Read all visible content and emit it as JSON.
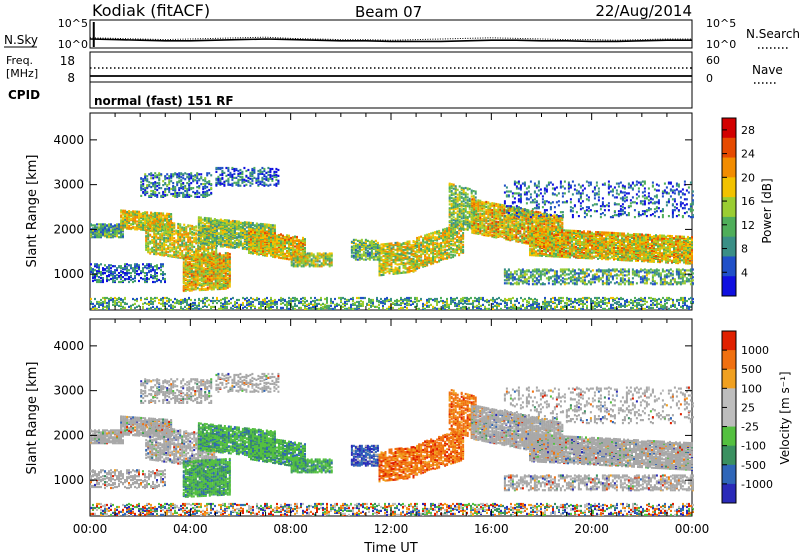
{
  "header": {
    "title": "Kodiak (fitACF)",
    "beam": "Beam 07",
    "date": "22/Aug/2014"
  },
  "chart_data": [
    {
      "id": "noise",
      "type": "line",
      "left_label": "N.Sky",
      "right_label": "N.Search",
      "left_ticks": [
        "10^5",
        "10^0"
      ],
      "right_ticks": [
        "10^5",
        "10^0"
      ],
      "series": [
        {
          "name": "N.Sky",
          "x": [
            0,
            1,
            2,
            3,
            4,
            5,
            6,
            7,
            8,
            9,
            10,
            11,
            12,
            13,
            14,
            15,
            16,
            17,
            18,
            19,
            20,
            21,
            22,
            23,
            24
          ],
          "y": [
            1.5,
            1.4,
            1.3,
            1.2,
            1.2,
            1.3,
            1.4,
            1.5,
            1.4,
            1.3,
            1.2,
            1.2,
            1.1,
            1.1,
            1.1,
            1.2,
            1.3,
            1.3,
            1.2,
            1.2,
            1.1,
            1.1,
            1.2,
            1.3,
            1.3
          ]
        },
        {
          "name": "N.Search",
          "x": [
            0,
            1,
            2,
            3,
            4,
            5,
            6,
            7,
            8,
            9,
            10,
            11,
            12,
            13,
            14,
            15,
            16,
            17,
            18,
            19,
            20,
            21,
            22,
            23,
            24
          ],
          "y": [
            1.7,
            1.6,
            1.5,
            1.4,
            1.5,
            1.6,
            1.7,
            1.8,
            1.6,
            1.5,
            1.4,
            1.4,
            1.3,
            1.4,
            1.5,
            1.6,
            1.7,
            1.6,
            1.5,
            1.4,
            1.4,
            1.3,
            1.4,
            1.5,
            1.5
          ]
        }
      ]
    },
    {
      "id": "freq",
      "type": "line",
      "left_label_lines": [
        "Freq.",
        "[MHz]"
      ],
      "right_label": "Nave",
      "left_ticks": [
        "18",
        "8"
      ],
      "right_ticks": [
        "60",
        "0"
      ],
      "cpid_label": "CPID",
      "cpid_text": "normal (fast) 151 RF",
      "series": [
        {
          "name": "Freq.",
          "x": [
            0,
            24
          ],
          "y": [
            10.2,
            10.2
          ]
        },
        {
          "name": "Nave",
          "x": [
            0,
            24
          ],
          "y": [
            22,
            22
          ]
        }
      ]
    },
    {
      "id": "power",
      "type": "heatmap",
      "ylabel": "Slant Range [km]",
      "yticks": [
        "1000",
        "2000",
        "3000",
        "4000"
      ],
      "ylim": [
        200,
        4600
      ],
      "xlim": [
        0,
        24
      ],
      "colorbar": {
        "label": "Power [dB]",
        "ticks": [
          "4",
          "8",
          "12",
          "16",
          "20",
          "24",
          "28"
        ],
        "range": [
          0,
          30
        ],
        "colors": [
          "#1010e0",
          "#2050c8",
          "#3a8f86",
          "#4fae5a",
          "#9acd32",
          "#f2c200",
          "#f28c00",
          "#e64a00",
          "#d20000"
        ]
      }
    },
    {
      "id": "velocity",
      "type": "heatmap",
      "ylabel": "Slant Range [km]",
      "yticks": [
        "1000",
        "2000",
        "3000",
        "4000"
      ],
      "ylim": [
        200,
        4600
      ],
      "xlim": [
        0,
        24
      ],
      "xlabel": "Time UT",
      "xticks": [
        "00:00",
        "04:00",
        "08:00",
        "12:00",
        "16:00",
        "20:00",
        "00:00"
      ],
      "colorbar": {
        "label": "Velocity [m s⁻¹]",
        "ticks": [
          "1000",
          "500",
          "100",
          "25",
          "-25",
          "-100",
          "-500",
          "-1000"
        ],
        "colors": [
          "#2a2ab8",
          "#2f66b8",
          "#3a9060",
          "#54c040",
          "#bdbdbd",
          "#bdbdbd",
          "#f0a020",
          "#f07010",
          "#e02000"
        ]
      }
    }
  ],
  "colors": {
    "ground_scatter": "#a8a8a8",
    "axis": "#000000"
  }
}
